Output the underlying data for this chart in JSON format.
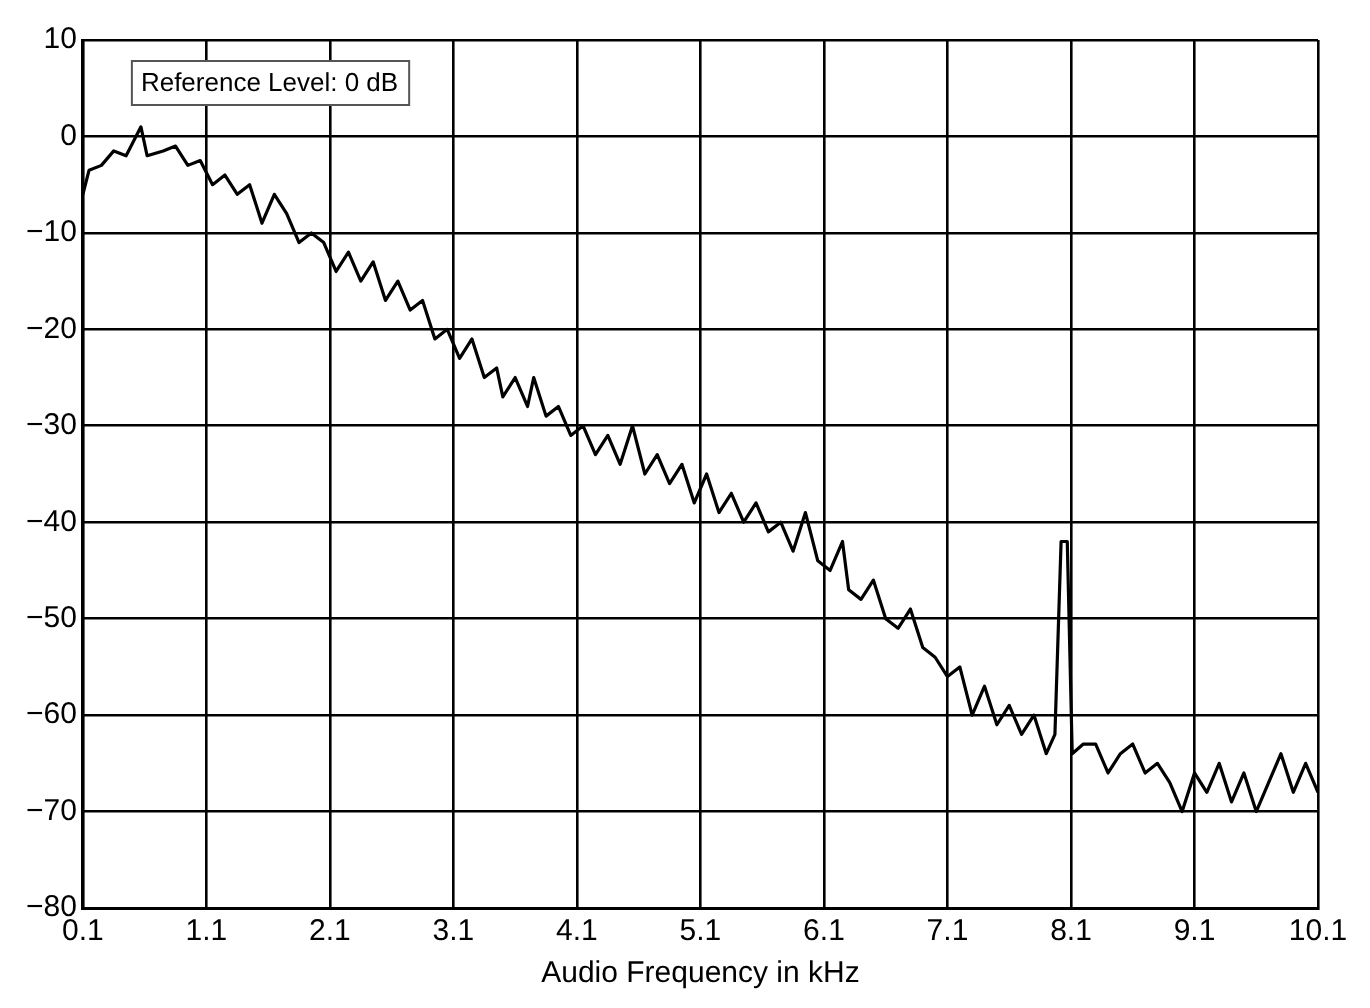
{
  "chart_data": {
    "type": "line",
    "xlabel": "Audio Frequency in kHz",
    "annotations": [
      "Reference Level: 0 dB"
    ],
    "xlim": [
      0.1,
      10.1
    ],
    "xticks": [
      0.1,
      1.1,
      2.1,
      3.1,
      4.1,
      5.1,
      6.1,
      7.1,
      8.1,
      9.1,
      10.1
    ],
    "ylim": [
      -80,
      10
    ],
    "yticks": [
      {
        "value": -80,
        "label": "−80"
      },
      {
        "value": -70,
        "label": "−70"
      },
      {
        "value": -60,
        "label": "−60"
      },
      {
        "value": -50,
        "label": "−50"
      },
      {
        "value": -40,
        "label": "−40"
      },
      {
        "value": -30,
        "label": "−30"
      },
      {
        "value": -20,
        "label": "−20"
      },
      {
        "value": -10,
        "label": "−10"
      },
      0,
      10
    ],
    "grid": true,
    "legend": false,
    "marker": "none",
    "line_style": "solid",
    "x": [
      0.1,
      0.15,
      0.25,
      0.35,
      0.45,
      0.57,
      0.62,
      0.75,
      0.85,
      0.95,
      1.05,
      1.15,
      1.25,
      1.35,
      1.45,
      1.55,
      1.65,
      1.75,
      1.85,
      1.95,
      2.05,
      2.15,
      2.25,
      2.35,
      2.45,
      2.55,
      2.65,
      2.75,
      2.85,
      2.95,
      3.05,
      3.15,
      3.25,
      3.35,
      3.45,
      3.5,
      3.6,
      3.7,
      3.75,
      3.85,
      3.95,
      4.05,
      4.15,
      4.25,
      4.35,
      4.45,
      4.55,
      4.65,
      4.75,
      4.85,
      4.95,
      5.05,
      5.15,
      5.25,
      5.35,
      5.45,
      5.55,
      5.65,
      5.75,
      5.85,
      5.95,
      6.05,
      6.15,
      6.25,
      6.3,
      6.4,
      6.5,
      6.6,
      6.7,
      6.8,
      6.9,
      7.0,
      7.1,
      7.2,
      7.3,
      7.4,
      7.5,
      7.6,
      7.7,
      7.8,
      7.9,
      7.97,
      8.02,
      8.07,
      8.11,
      8.2,
      8.3,
      8.4,
      8.5,
      8.6,
      8.7,
      8.8,
      8.9,
      9.0,
      9.1,
      9.2,
      9.3,
      9.4,
      9.5,
      9.6,
      9.7,
      9.8,
      9.9,
      10.0,
      10.1
    ],
    "series": [
      {
        "color": "#000000",
        "values": [
          -6,
          -3.5,
          -3,
          -1.5,
          -2,
          1,
          -2,
          -1.5,
          -1,
          -3,
          -2.5,
          -5,
          -4,
          -6,
          -5,
          -9,
          -6,
          -8,
          -11,
          -10,
          -11,
          -14,
          -12,
          -15,
          -13,
          -17,
          -15,
          -18,
          -17,
          -21,
          -20,
          -23,
          -21,
          -25,
          -24,
          -27,
          -25,
          -28,
          -25,
          -29,
          -28,
          -31,
          -30,
          -33,
          -31,
          -34,
          -30,
          -35,
          -33,
          -36,
          -34,
          -38,
          -35,
          -39,
          -37,
          -40,
          -38,
          -41,
          -40,
          -43,
          -39,
          -44,
          -45,
          -42,
          -47,
          -48,
          -46,
          -50,
          -51,
          -49,
          -53,
          -54,
          -56,
          -55,
          -60,
          -57,
          -61,
          -59,
          -62,
          -60,
          -64,
          -62,
          -42,
          -42,
          -64,
          -63,
          -63,
          -66,
          -64,
          -63,
          -66,
          -65,
          -67,
          -70,
          -66,
          -68,
          -65,
          -69,
          -66,
          -70,
          -67,
          -64,
          -68,
          -65,
          -68
        ]
      }
    ]
  }
}
